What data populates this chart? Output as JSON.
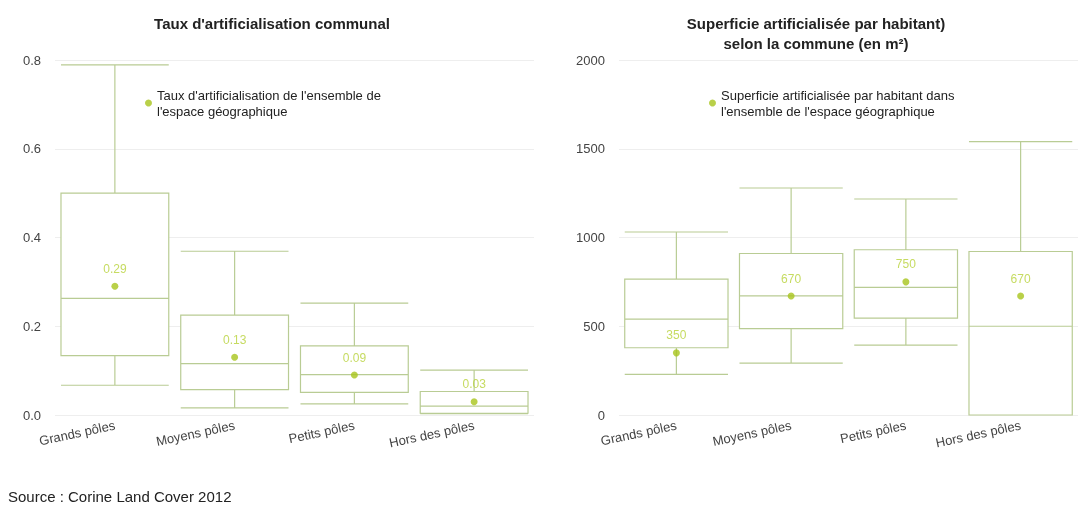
{
  "chart_data": [
    {
      "type": "box",
      "title": "Taux d'artificialisation communal",
      "categories": [
        "Grands pôles",
        "Moyens pôles",
        "Petits pôles",
        "Hors des pôles"
      ],
      "ylim": [
        0,
        0.8
      ],
      "yticks": [
        {
          "value": 0,
          "label": "0.0"
        },
        {
          "value": 0.2,
          "label": "0.2"
        },
        {
          "value": 0.4,
          "label": "0.4"
        },
        {
          "value": 0.6,
          "label": "0.6"
        },
        {
          "value": 0.8,
          "label": "0.8"
        }
      ],
      "grid": "y",
      "legend": "top",
      "marker": "circle",
      "series": [
        {
          "type": "box",
          "color": "#b9cc94",
          "boxes": [
            {
              "low": 0.067,
              "q1": 0.134,
              "median": 0.263,
              "q3": 0.5,
              "high": 0.789
            },
            {
              "low": 0.016,
              "q1": 0.057,
              "median": 0.116,
              "q3": 0.225,
              "high": 0.369
            },
            {
              "low": 0.025,
              "q1": 0.051,
              "median": 0.091,
              "q3": 0.156,
              "high": 0.252
            },
            {
              "low": 0.003,
              "q1": 0.004,
              "median": 0.02,
              "q3": 0.053,
              "high": 0.101
            }
          ]
        },
        {
          "type": "scatter",
          "name": "Taux d'artificialisation de l'ensemble de l'espace géographique",
          "color": "#a8c41c",
          "x": [
            "Grands pôles",
            "Moyens pôles",
            "Petits pôles",
            "Hors des pôles"
          ],
          "values": [
            0.29,
            0.13,
            0.09,
            0.03
          ],
          "value_labels": [
            "0.29",
            "0.13",
            "0.09",
            "0.03"
          ]
        }
      ],
      "annotations": [
        "Source : Corine Land Cover 2012"
      ]
    },
    {
      "type": "box",
      "title": "Superficie artificialisée par habitant)\nselon la commune (en m²)",
      "categories": [
        "Grands pôles",
        "Moyens pôles",
        "Petits pôles",
        "Hors des pôles"
      ],
      "ylim": [
        0,
        2000
      ],
      "yticks": [
        0,
        500,
        1000,
        1500,
        2000
      ],
      "grid": "y",
      "legend": "top",
      "marker": "circle",
      "series": [
        {
          "type": "box",
          "color": "#b9cc94",
          "boxes": [
            {
              "low": 229,
              "q1": 379,
              "median": 540,
              "q3": 765,
              "high": 1031
            },
            {
              "low": 292,
              "q1": 487,
              "median": 671,
              "q3": 910,
              "high": 1279
            },
            {
              "low": 394,
              "q1": 546,
              "median": 719,
              "q3": 931,
              "high": 1217
            },
            {
              "low": 0,
              "q1": 0,
              "median": 500,
              "q3": 921,
              "high": 1540
            }
          ]
        },
        {
          "type": "scatter",
          "name": "Superficie artificialisée par habitant dans l'ensemble de l'espace géographique",
          "color": "#a8c41c",
          "x": [
            "Grands pôles",
            "Moyens pôles",
            "Petits pôles",
            "Hors des pôles"
          ],
          "values": [
            350,
            670,
            750,
            670
          ],
          "value_labels": [
            "350",
            "670",
            "750",
            "670"
          ]
        }
      ]
    }
  ]
}
